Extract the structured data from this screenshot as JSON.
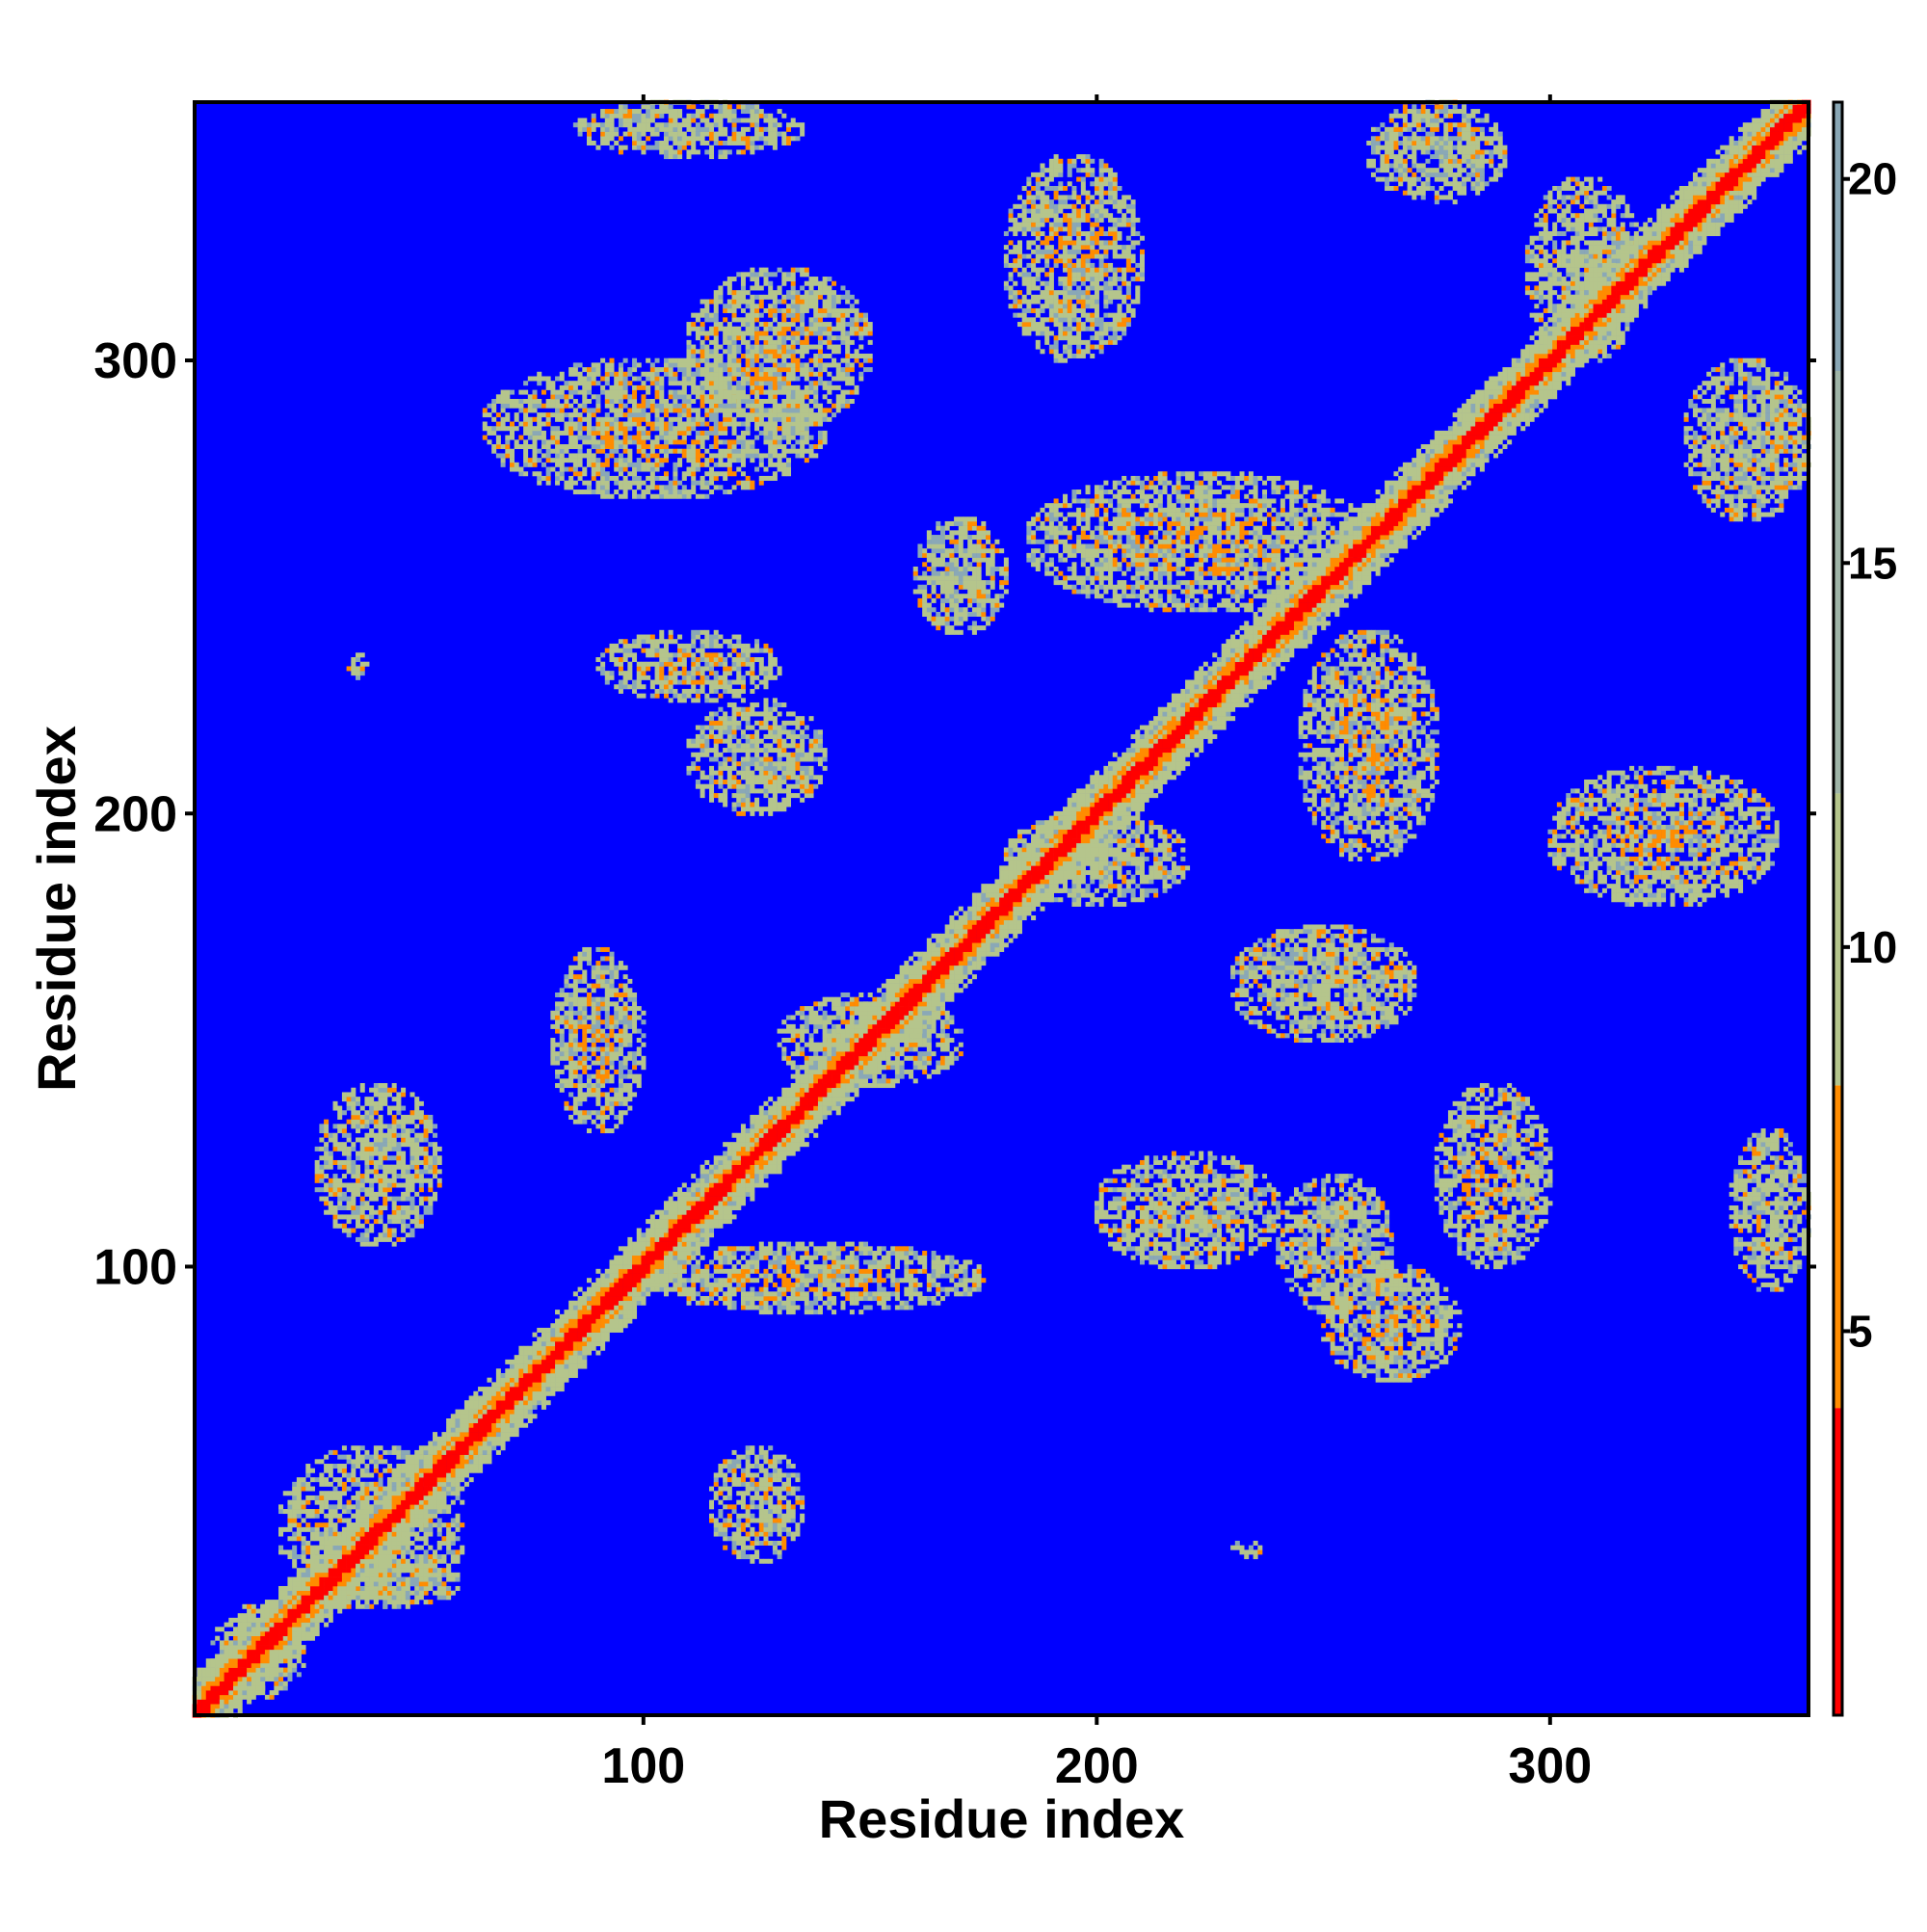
{
  "chart_data": {
    "type": "heatmap",
    "title": "",
    "xlabel": "Residue index",
    "ylabel": "Residue index",
    "n_residues": 357,
    "xlim": [
      1,
      357
    ],
    "ylim": [
      1,
      357
    ],
    "x_ticks": [
      100,
      200,
      300
    ],
    "y_ticks": [
      100,
      200,
      300
    ],
    "x_tick_labels": [
      "100",
      "200",
      "300"
    ],
    "y_tick_labels": [
      "100",
      "200",
      "300"
    ],
    "colorbar": {
      "ticks": [
        5,
        10,
        15,
        20
      ],
      "tick_labels": [
        "5",
        "10",
        "15",
        "20"
      ],
      "range": [
        0,
        21
      ],
      "colors": {
        "near": "#ff0000",
        "close": "#ff8c00",
        "mid": "#b5c58c",
        "far": "#8aa8b6",
        "background": "#0000ff"
      }
    },
    "diagonal": "distance increases with |i - j|; red along the main diagonal, orange/green band on either side",
    "contact_regions": [
      {
        "x": [
          5,
          25
        ],
        "y": [
          5,
          25
        ],
        "level": "mid"
      },
      {
        "x": [
          20,
          60
        ],
        "y": [
          25,
          60
        ],
        "level": "mid"
      },
      {
        "x": [
          25,
          60
        ],
        "y": [
          25,
          35
        ],
        "level": "mid"
      },
      {
        "x": [
          28,
          55
        ],
        "y": [
          105,
          140
        ],
        "level": "mid"
      },
      {
        "x": [
          35,
          40
        ],
        "y": [
          230,
          235
        ],
        "level": "mid"
      },
      {
        "x": [
          115,
          135
        ],
        "y": [
          35,
          60
        ],
        "level": "mid"
      },
      {
        "x": [
          230,
          236
        ],
        "y": [
          35,
          40
        ],
        "level": "mid"
      },
      {
        "x": [
          80,
          100
        ],
        "y": [
          130,
          170
        ],
        "level": "close"
      },
      {
        "x": [
          100,
          175
        ],
        "y": [
          90,
          105
        ],
        "level": "close"
      },
      {
        "x": [
          130,
          170
        ],
        "y": [
          140,
          160
        ],
        "level": "close"
      },
      {
        "x": [
          110,
          140
        ],
        "y": [
          200,
          225
        ],
        "level": "mid"
      },
      {
        "x": [
          90,
          130
        ],
        "y": [
          225,
          240
        ],
        "level": "close"
      },
      {
        "x": [
          65,
          140
        ],
        "y": [
          270,
          300
        ],
        "level": "close"
      },
      {
        "x": [
          110,
          150
        ],
        "y": [
          285,
          320
        ],
        "level": "close"
      },
      {
        "x": [
          160,
          180
        ],
        "y": [
          240,
          265
        ],
        "level": "mid"
      },
      {
        "x": [
          180,
          220
        ],
        "y": [
          180,
          200
        ],
        "level": "mid"
      },
      {
        "x": [
          185,
          260
        ],
        "y": [
          245,
          275
        ],
        "level": "close"
      },
      {
        "x": [
          200,
          240
        ],
        "y": [
          100,
          125
        ],
        "level": "mid"
      },
      {
        "x": [
          240,
          265
        ],
        "y": [
          90,
          120
        ],
        "level": "mid"
      },
      {
        "x": [
          250,
          280
        ],
        "y": [
          75,
          100
        ],
        "level": "close"
      },
      {
        "x": [
          275,
          300
        ],
        "y": [
          100,
          140
        ],
        "level": "close"
      },
      {
        "x": [
          230,
          270
        ],
        "y": [
          150,
          175
        ],
        "level": "mid"
      },
      {
        "x": [
          245,
          275
        ],
        "y": [
          190,
          240
        ],
        "level": "close"
      },
      {
        "x": [
          300,
          350
        ],
        "y": [
          180,
          210
        ],
        "level": "close"
      },
      {
        "x": [
          180,
          210
        ],
        "y": [
          300,
          345
        ],
        "level": "close"
      },
      {
        "x": [
          260,
          290
        ],
        "y": [
          335,
          357
        ],
        "level": "mid"
      },
      {
        "x": [
          295,
          320
        ],
        "y": [
          300,
          340
        ],
        "level": "mid"
      },
      {
        "x": [
          330,
          357
        ],
        "y": [
          265,
          300
        ],
        "level": "mid"
      },
      {
        "x": [
          340,
          357
        ],
        "y": [
          95,
          130
        ],
        "level": "mid"
      },
      {
        "x": [
          85,
          135
        ],
        "y": [
          345,
          357
        ],
        "level": "mid"
      }
    ]
  }
}
